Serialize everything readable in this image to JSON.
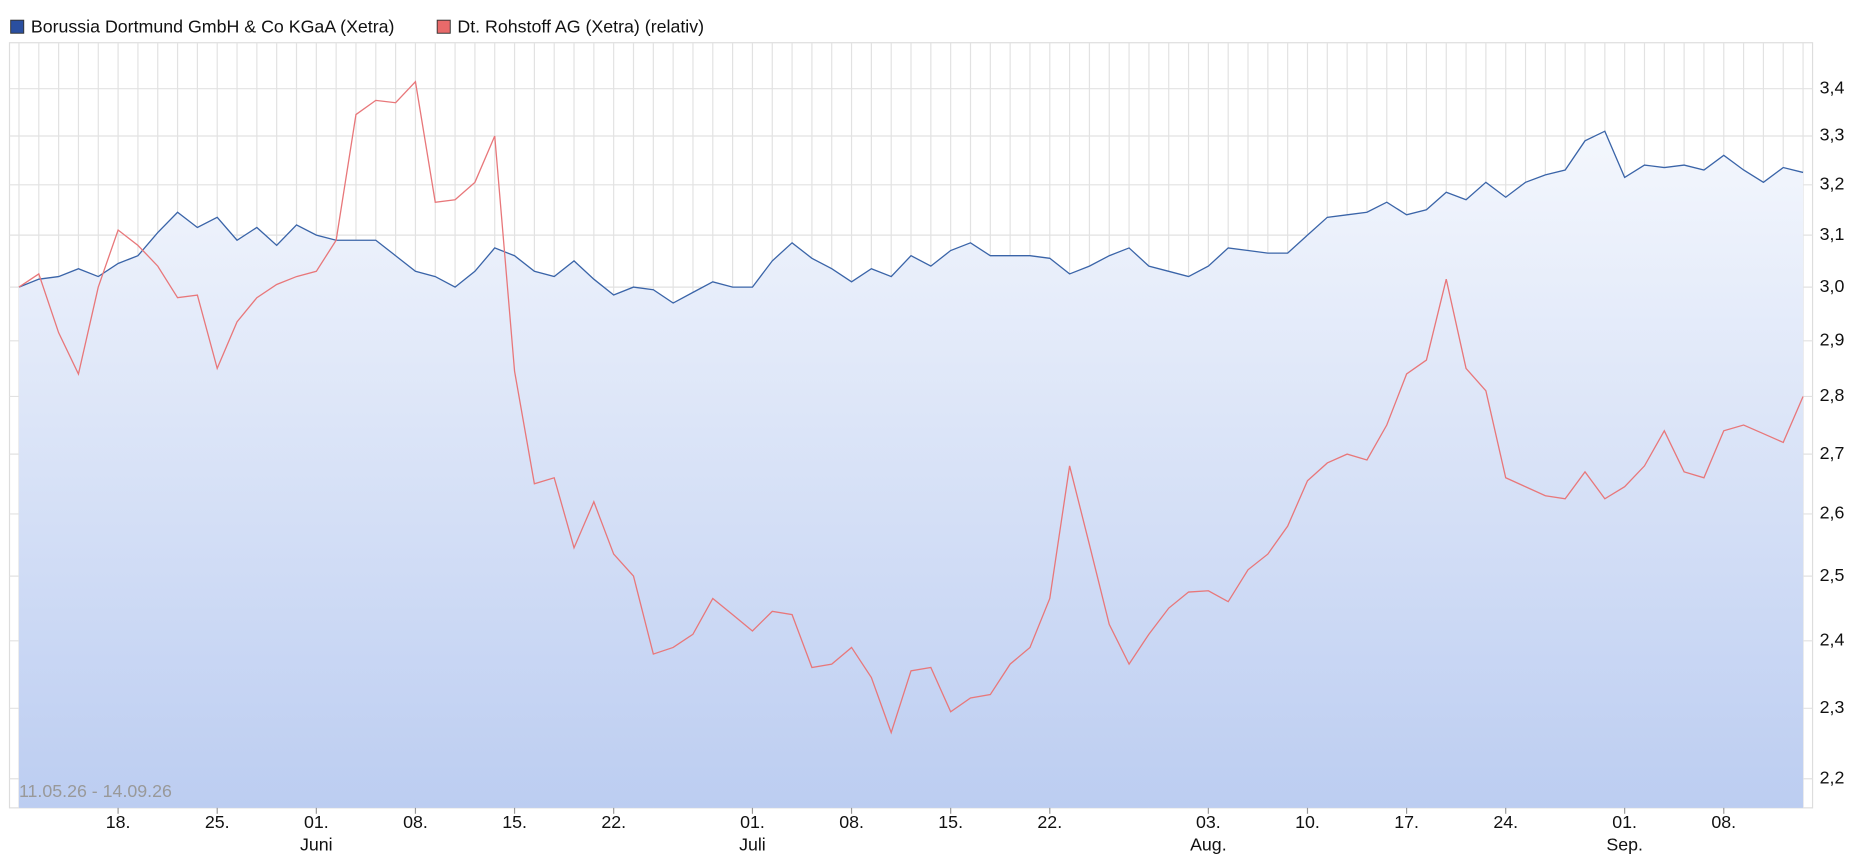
{
  "chart_data": {
    "type": "line",
    "log_scale": true,
    "grid": true,
    "legend_position": "top-left",
    "range_label": "11.05.26 - 14.09.26",
    "ylim": [
      2.16,
      3.5
    ],
    "yticks": [
      {
        "value": 2.2,
        "label": "2,2"
      },
      {
        "value": 2.3,
        "label": "2,3"
      },
      {
        "value": 2.4,
        "label": "2,4"
      },
      {
        "value": 2.5,
        "label": "2,5"
      },
      {
        "value": 2.6,
        "label": "2,6"
      },
      {
        "value": 2.7,
        "label": "2,7"
      },
      {
        "value": 2.8,
        "label": "2,8"
      },
      {
        "value": 2.9,
        "label": "2,9"
      },
      {
        "value": 3.0,
        "label": "3,0"
      },
      {
        "value": 3.1,
        "label": "3,1"
      },
      {
        "value": 3.2,
        "label": "3,2"
      },
      {
        "value": 3.3,
        "label": "3,3"
      },
      {
        "value": 3.4,
        "label": "3,4"
      }
    ],
    "xticks": [
      {
        "value": 5,
        "label": "18."
      },
      {
        "value": 10,
        "label": "25."
      },
      {
        "value": 15,
        "label": "01."
      },
      {
        "value": 20,
        "label": "08."
      },
      {
        "value": 25,
        "label": "15."
      },
      {
        "value": 30,
        "label": "22."
      },
      {
        "value": 37,
        "label": "01."
      },
      {
        "value": 42,
        "label": "08."
      },
      {
        "value": 47,
        "label": "15."
      },
      {
        "value": 52,
        "label": "22."
      },
      {
        "value": 60,
        "label": "03."
      },
      {
        "value": 65,
        "label": "10."
      },
      {
        "value": 70,
        "label": "17."
      },
      {
        "value": 75,
        "label": "24."
      },
      {
        "value": 81,
        "label": "01."
      },
      {
        "value": 86,
        "label": "08."
      }
    ],
    "month_labels": [
      {
        "value": 15,
        "label": "Juni"
      },
      {
        "value": 37,
        "label": "Juli"
      },
      {
        "value": 60,
        "label": "Aug."
      },
      {
        "value": 81,
        "label": "Sep."
      }
    ],
    "series": [
      {
        "name": "Borussia Dortmund GmbH & Co KGaA (Xetra)",
        "color": "#3a64a8",
        "legend_color": "#2a4fa0",
        "area": true,
        "values": [
          3.0,
          3.015,
          3.02,
          3.035,
          3.02,
          3.045,
          3.06,
          3.105,
          3.145,
          3.115,
          3.135,
          3.09,
          3.115,
          3.08,
          3.12,
          3.1,
          3.09,
          3.09,
          3.09,
          3.06,
          3.03,
          3.02,
          3.0,
          3.03,
          3.075,
          3.06,
          3.03,
          3.02,
          3.05,
          3.015,
          2.985,
          3.0,
          2.995,
          2.97,
          2.99,
          3.01,
          3.0,
          3.0,
          3.05,
          3.085,
          3.055,
          3.035,
          3.01,
          3.035,
          3.02,
          3.06,
          3.04,
          3.07,
          3.085,
          3.06,
          3.06,
          3.06,
          3.055,
          3.025,
          3.04,
          3.06,
          3.075,
          3.04,
          3.03,
          3.02,
          3.04,
          3.075,
          3.07,
          3.065,
          3.065,
          3.1,
          3.135,
          3.14,
          3.145,
          3.165,
          3.14,
          3.15,
          3.185,
          3.17,
          3.205,
          3.175,
          3.205,
          3.22,
          3.23,
          3.29,
          3.31,
          3.215,
          3.24,
          3.235,
          3.24,
          3.23,
          3.26,
          3.23,
          3.205,
          3.235,
          3.225
        ]
      },
      {
        "name": "Dt. Rohstoff AG (Xetra) (relativ)",
        "color": "#e8777a",
        "legend_color": "#e86a6a",
        "area": false,
        "values": [
          3.0,
          3.025,
          2.915,
          2.84,
          3.0,
          3.11,
          3.08,
          3.04,
          2.98,
          2.985,
          2.85,
          2.935,
          2.98,
          3.005,
          3.02,
          3.03,
          3.09,
          3.345,
          3.375,
          3.37,
          3.415,
          3.165,
          3.17,
          3.205,
          3.3,
          2.845,
          2.65,
          2.66,
          2.545,
          2.62,
          2.535,
          2.5,
          2.38,
          2.39,
          2.41,
          2.465,
          2.44,
          2.415,
          2.445,
          2.44,
          2.36,
          2.365,
          2.39,
          2.345,
          2.265,
          2.355,
          2.36,
          2.295,
          2.315,
          2.32,
          2.365,
          2.39,
          2.465,
          2.68,
          2.55,
          2.425,
          2.365,
          2.41,
          2.45,
          2.475,
          2.477,
          2.46,
          2.51,
          2.535,
          2.58,
          2.655,
          2.685,
          2.7,
          2.69,
          2.75,
          2.84,
          2.865,
          3.015,
          2.85,
          2.81,
          2.66,
          2.645,
          2.63,
          2.625,
          2.67,
          2.625,
          2.645,
          2.68,
          2.74,
          2.67,
          2.66,
          2.74,
          2.75,
          2.735,
          2.72,
          2.8
        ]
      }
    ]
  }
}
